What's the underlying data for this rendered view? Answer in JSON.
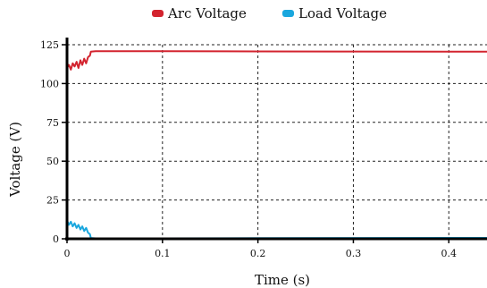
{
  "chart_data": {
    "type": "line",
    "xlabel": "Time (s)",
    "ylabel": "Voltage (V)",
    "xlim": [
      0,
      0.44
    ],
    "ylim": [
      0,
      125
    ],
    "xticks": [
      0,
      0.1,
      0.2,
      0.3,
      0.4
    ],
    "xtick_labels": [
      "0",
      "0.1",
      "0.2",
      "0.3",
      "0.4"
    ],
    "yticks": [
      0,
      25,
      50,
      75,
      100,
      125
    ],
    "ytick_labels": [
      "0",
      "25",
      "50",
      "75",
      "100",
      "125"
    ],
    "grid": true,
    "legend_position": "top-center",
    "series": [
      {
        "name": "Arc Voltage",
        "color": "#d3242f",
        "x": [
          0,
          0.002,
          0.004,
          0.006,
          0.008,
          0.01,
          0.012,
          0.014,
          0.016,
          0.018,
          0.02,
          0.022,
          0.024,
          0.025,
          0.03,
          0.1,
          0.2,
          0.3,
          0.4,
          0.44
        ],
        "y": [
          110,
          112,
          109,
          113,
          111,
          114,
          110,
          115,
          112,
          116,
          113,
          117,
          118,
          120.5,
          120.8,
          120.8,
          120.7,
          120.6,
          120.5,
          120.5
        ]
      },
      {
        "name": "Load Voltage",
        "color": "#1aa7de",
        "x": [
          0,
          0.002,
          0.004,
          0.006,
          0.008,
          0.01,
          0.012,
          0.014,
          0.016,
          0.018,
          0.02,
          0.022,
          0.024,
          0.025,
          0.03,
          0.1,
          0.2,
          0.3,
          0.4,
          0.44
        ],
        "y": [
          12,
          9,
          11,
          8,
          10,
          7,
          9,
          6,
          8,
          5,
          7,
          4,
          3,
          0.5,
          0.3,
          0.3,
          0.4,
          0.5,
          0.6,
          0.6
        ]
      }
    ]
  }
}
